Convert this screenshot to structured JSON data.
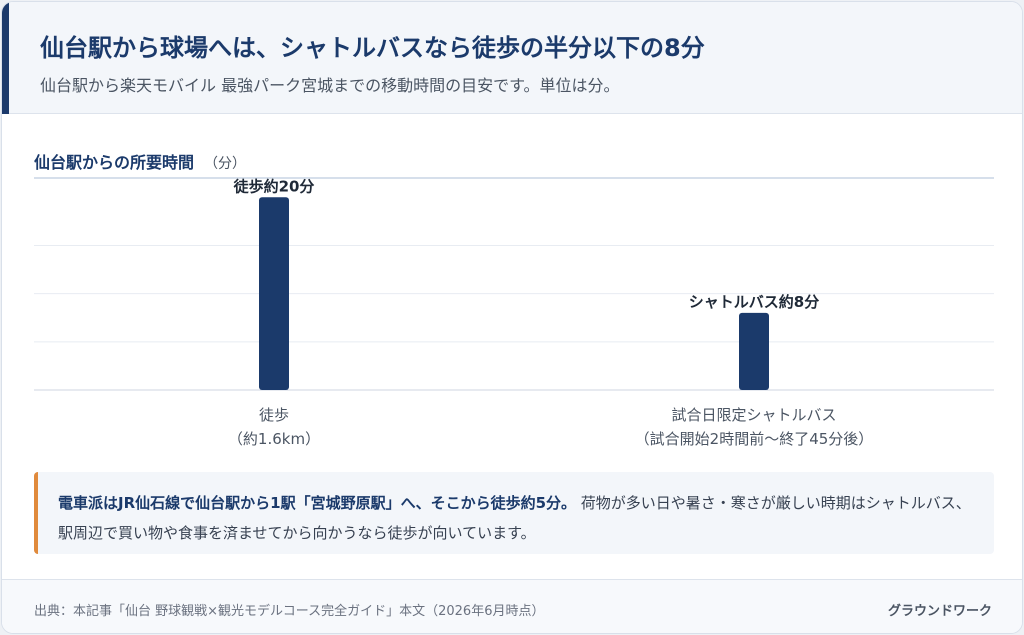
{
  "header": {
    "title": "仙台駅から球場へは、シャトルバスなら徒歩の半分以下の8分",
    "subtitle": "仙台駅から楽天モバイル 最強パーク宮城までの移動時間の目安です。単位は分。"
  },
  "chart_data": {
    "type": "bar",
    "title": "仙台駅からの所要時間",
    "unit": "（分）",
    "ylim": [
      0,
      22
    ],
    "grid": true,
    "categories": [
      {
        "line1": "徒歩",
        "line2": "（約1.6km）"
      },
      {
        "line1": "試合日限定シャトルバス",
        "line2": "（試合開始2時間前〜終了45分後）"
      }
    ],
    "values": [
      20,
      8
    ],
    "data_labels": [
      "徒歩約20分",
      "シャトルバス約8分"
    ],
    "bar_color": "#1b3a6b"
  },
  "note": {
    "strong": "電車派はJR仙石線で仙台駅から1駅「宮城野原駅」へ、そこから徒歩約5分。",
    "text": "荷物が多い日や暑さ・寒さが厳しい時期はシャトルバス、駅周辺で買い物や食事を済ませてから向かうなら徒歩が向いています。"
  },
  "footer": {
    "source": "出典：本記事「仙台 野球観戦×観光モデルコース完全ガイド」本文（2026年6月時点）",
    "brand": "グラウンドワーク"
  }
}
